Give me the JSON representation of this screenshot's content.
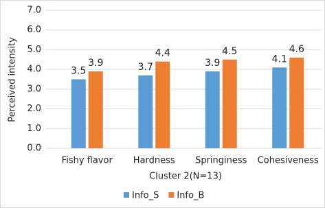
{
  "chart_data": {
    "type": "bar",
    "x_label": "Cluster 2(N=13)",
    "y_label": "Perceived intensity",
    "categories": [
      "Fishy flavor",
      "Hardness",
      "Springiness",
      "Cohesiveness"
    ],
    "series": [
      {
        "name": "Info_S",
        "color": "#5b9bd5",
        "values": [
          3.5,
          3.7,
          3.9,
          4.1
        ]
      },
      {
        "name": "Info_B",
        "color": "#ed7d31",
        "values": [
          3.9,
          4.4,
          4.5,
          4.6
        ]
      }
    ],
    "ylim": [
      0,
      7
    ],
    "yticks": [
      {
        "value": 0,
        "label": "0.0"
      },
      {
        "value": 1,
        "label": "1.0"
      },
      {
        "value": 2,
        "label": "2.0"
      },
      {
        "value": 3,
        "label": "3.0"
      },
      {
        "value": 4,
        "label": "4.0"
      },
      {
        "value": 5,
        "label": "5.0"
      },
      {
        "value": 6,
        "label": "6.0"
      },
      {
        "value": 7,
        "label": "7.0"
      }
    ],
    "grid": true,
    "legend": "bottom"
  }
}
